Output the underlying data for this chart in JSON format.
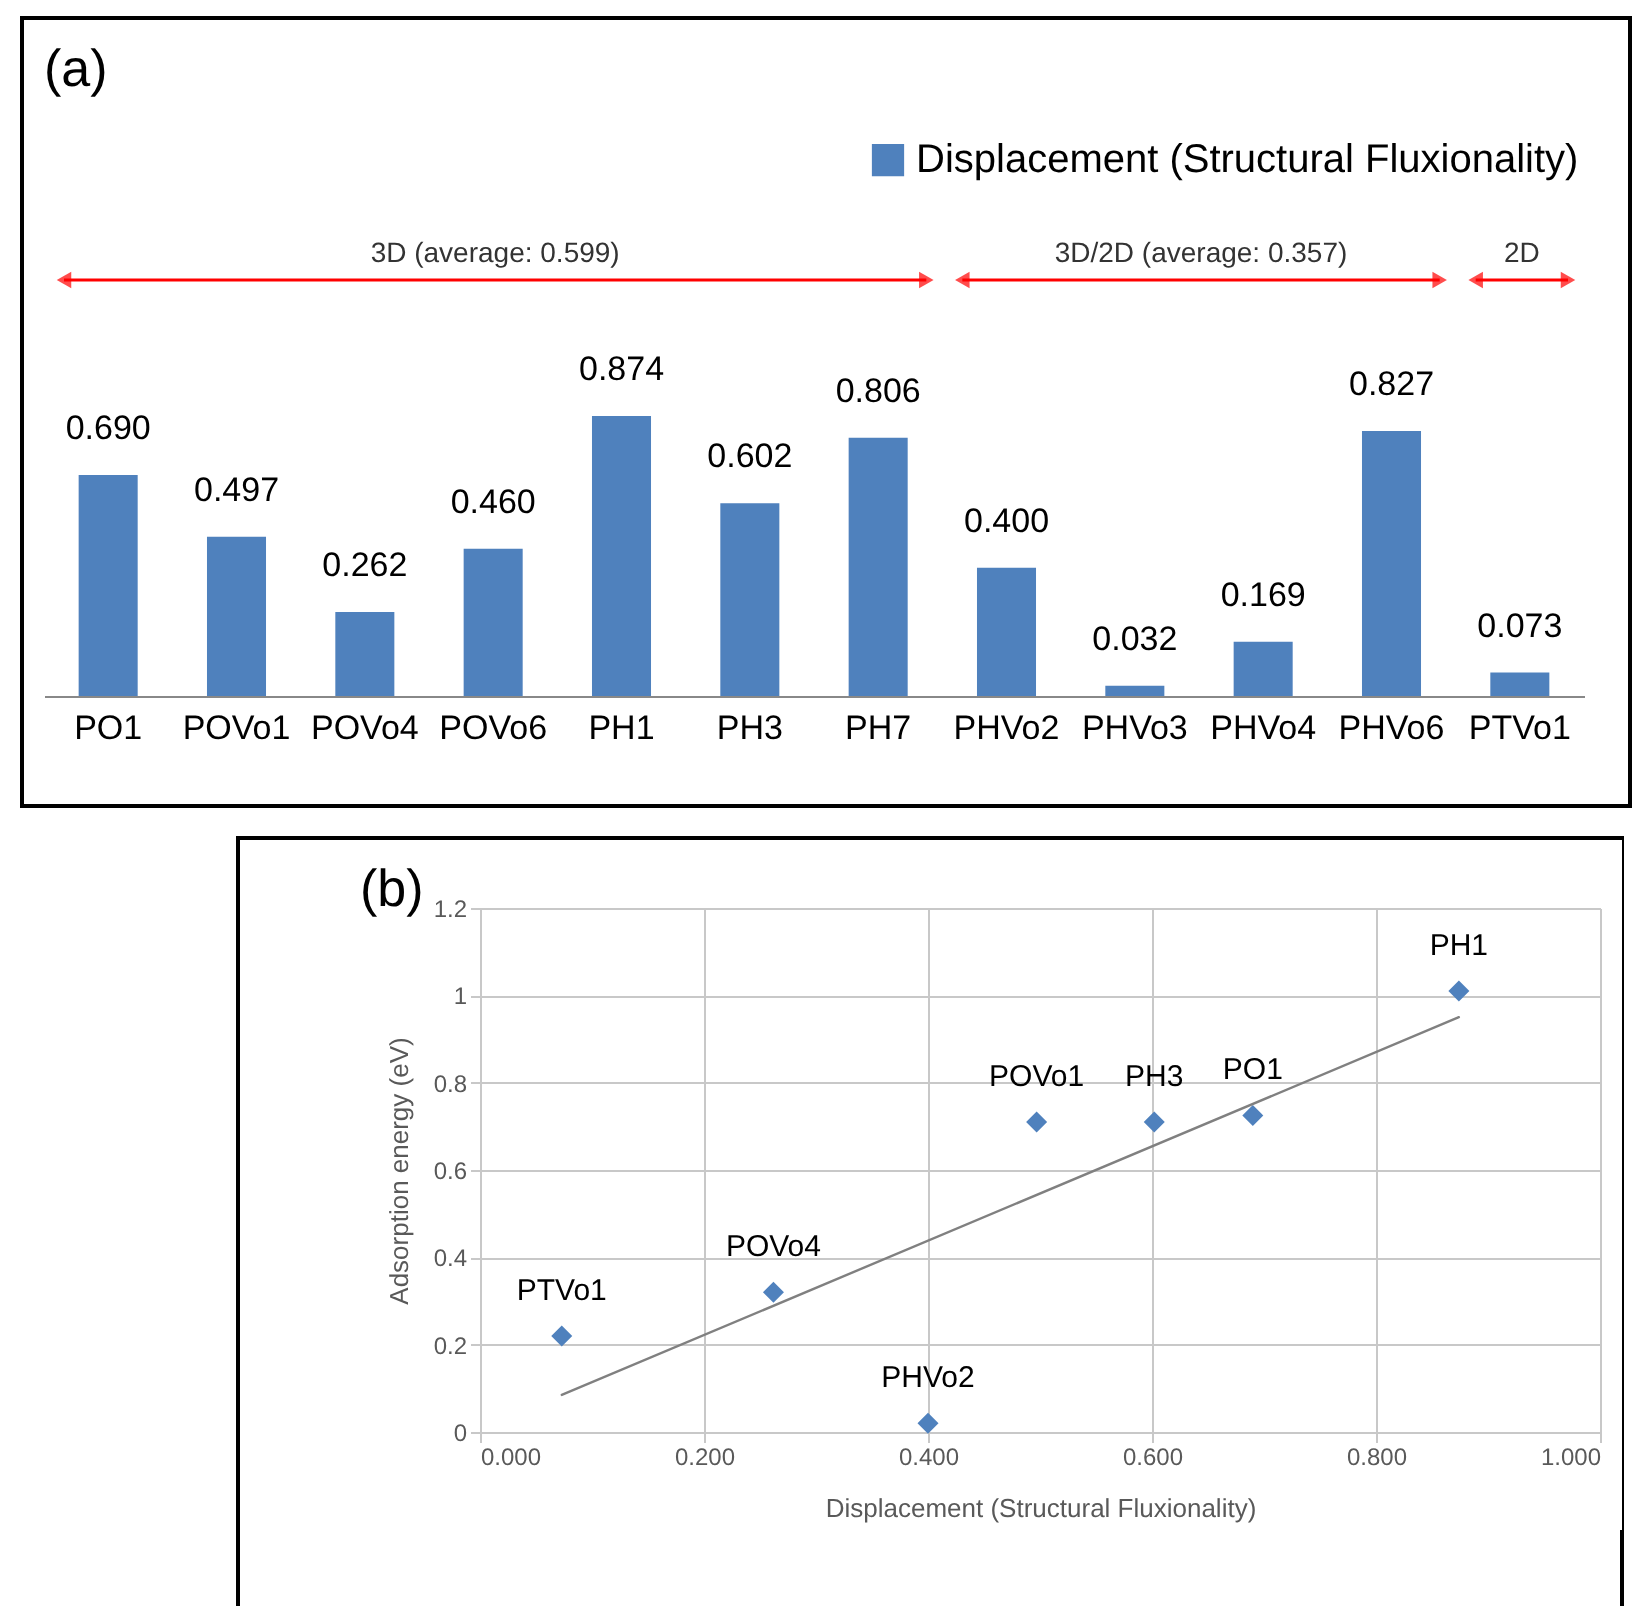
{
  "chart_data": [
    {
      "type": "bar",
      "title": "(a)",
      "categories": [
        "PO1",
        "POVo1",
        "POVo4",
        "POVo6",
        "PH1",
        "PH3",
        "PH7",
        "PHVo2",
        "PHVo3",
        "PHVo4",
        "PHVo6",
        "PTVo1"
      ],
      "series": [
        {
          "name": "Displacement (Structural Fluxionality)",
          "color": "#4f81bd",
          "values": [
            0.69,
            0.497,
            0.262,
            0.46,
            0.874,
            0.602,
            0.806,
            0.4,
            0.032,
            0.169,
            0.827,
            0.073
          ],
          "value_labels": [
            "0.690",
            "0.497",
            "0.262",
            "0.460",
            "0.874",
            "0.602",
            "0.806",
            "0.400",
            "0.032",
            "0.169",
            "0.827",
            "0.073"
          ]
        }
      ],
      "legend": "top right",
      "tick_labels": "x",
      "annotations": [
        "3D (average: 0.599)",
        "3D/2D (average: 0.357)",
        "2D"
      ]
    },
    {
      "type": "scatter",
      "title": "(b)",
      "xlabel": "Displacement (Structural Fluxionality)",
      "ylabel": "Adsorption energy (eV)",
      "xlim": [
        0,
        1
      ],
      "xticks": [
        {
          "value": 0,
          "label": "0.000"
        },
        {
          "value": 0.2,
          "label": "0.200"
        },
        {
          "value": 0.4,
          "label": "0.400"
        },
        {
          "value": 0.6,
          "label": "0.600"
        },
        {
          "value": 0.8,
          "label": "0.800"
        },
        {
          "value": 1,
          "label": "1.000"
        }
      ],
      "ylim": [
        0,
        1.2
      ],
      "yticks": [
        0,
        0.2,
        0.4,
        0.6,
        0.8,
        1,
        1.2
      ],
      "grid": true,
      "series": [
        {
          "color": "#4f81bd",
          "marker": "diamond",
          "x": [
            0.073,
            0.262,
            0.4,
            0.497,
            0.602,
            0.69,
            0.874
          ],
          "values": [
            0.22,
            0.32,
            0.02,
            0.71,
            0.71,
            0.725,
            1.01
          ]
        },
        {
          "type": "line",
          "color": "#808080",
          "x": [
            0.073,
            0.874
          ],
          "values": [
            0.085,
            0.95
          ]
        }
      ],
      "annotations": [
        {
          "text": "PTVo1",
          "x": 0.073,
          "y": 0.22
        },
        {
          "text": "POVo4",
          "x": 0.262,
          "y": 0.32
        },
        {
          "text": "PHVo2",
          "x": 0.4,
          "y": 0.02
        },
        {
          "text": "POVo1",
          "x": 0.497,
          "y": 0.71
        },
        {
          "text": "PH3",
          "x": 0.602,
          "y": 0.71
        },
        {
          "text": "PO1",
          "x": 0.69,
          "y": 0.725
        },
        {
          "text": "PH1",
          "x": 0.874,
          "y": 1.01
        }
      ]
    }
  ]
}
